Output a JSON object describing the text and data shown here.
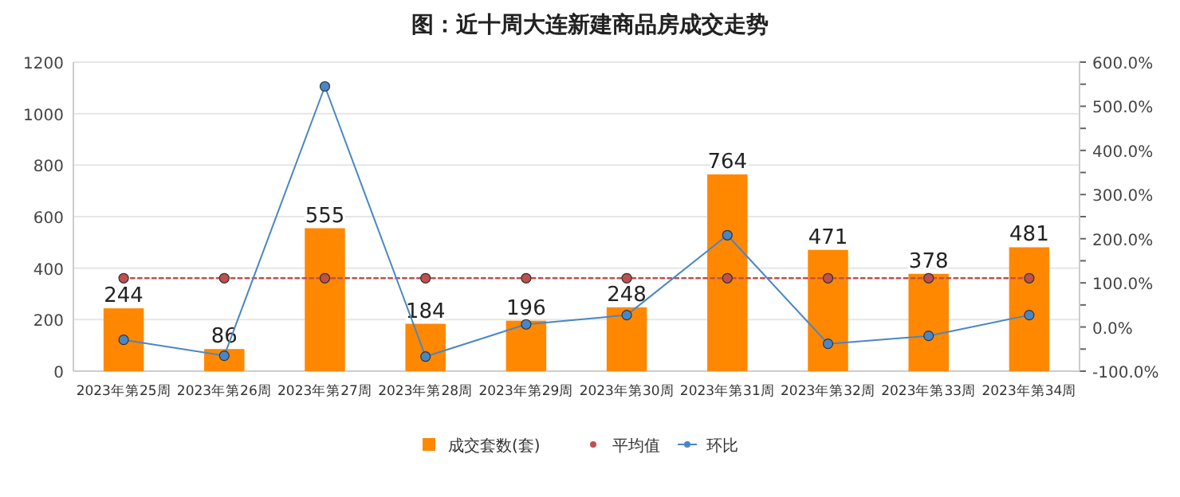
{
  "chart_data": {
    "type": "bar",
    "title": "图：近十周大连新建商品房成交走势",
    "categories": [
      "2023年第25周",
      "2023年第26周",
      "2023年第27周",
      "2023年第28周",
      "2023年第29周",
      "2023年第30周",
      "2023年第31周",
      "2023年第32周",
      "2023年第33周",
      "2023年第34周"
    ],
    "series": [
      {
        "name": "成交套数(套)",
        "color": "#ff8800",
        "values": [
          244,
          86,
          555,
          184,
          196,
          248,
          764,
          471,
          378,
          481
        ],
        "data_labels": true
      },
      {
        "name": "平均值",
        "type": "line",
        "color": "#c0504d",
        "line_style": "dotted",
        "marker": "circle",
        "values": [
          361,
          361,
          361,
          361,
          361,
          361,
          361,
          361,
          361,
          361
        ]
      },
      {
        "name": "环比",
        "type": "line",
        "color": "#4a86c5",
        "line_style": "solid",
        "marker": "circle",
        "axis": "y2",
        "values": [
          -29,
          -65,
          545,
          -67,
          6,
          27,
          208,
          -38,
          -20,
          27
        ]
      }
    ],
    "ylim": [
      0,
      1200
    ],
    "yticks": [
      0,
      200,
      400,
      600,
      800,
      1000,
      1200
    ],
    "y2lim": [
      -100,
      600
    ],
    "y2ticks": [
      {
        "value": -100,
        "label": "-100.0%"
      },
      {
        "value": -50,
        "label": null
      },
      {
        "value": 0,
        "label": "0.0%"
      },
      {
        "value": 50,
        "label": null
      },
      {
        "value": 100,
        "label": "100.0%"
      },
      {
        "value": 150,
        "label": null
      },
      {
        "value": 200,
        "label": "200.0%"
      },
      {
        "value": 250,
        "label": null
      },
      {
        "value": 300,
        "label": "300.0%"
      },
      {
        "value": 350,
        "label": null
      },
      {
        "value": 400,
        "label": "400.0%"
      },
      {
        "value": 450,
        "label": null
      },
      {
        "value": 500,
        "label": "500.0%"
      },
      {
        "value": 550,
        "label": null
      },
      {
        "value": 600,
        "label": "600.0%"
      }
    ],
    "grid": "y",
    "legend": "bottom"
  }
}
